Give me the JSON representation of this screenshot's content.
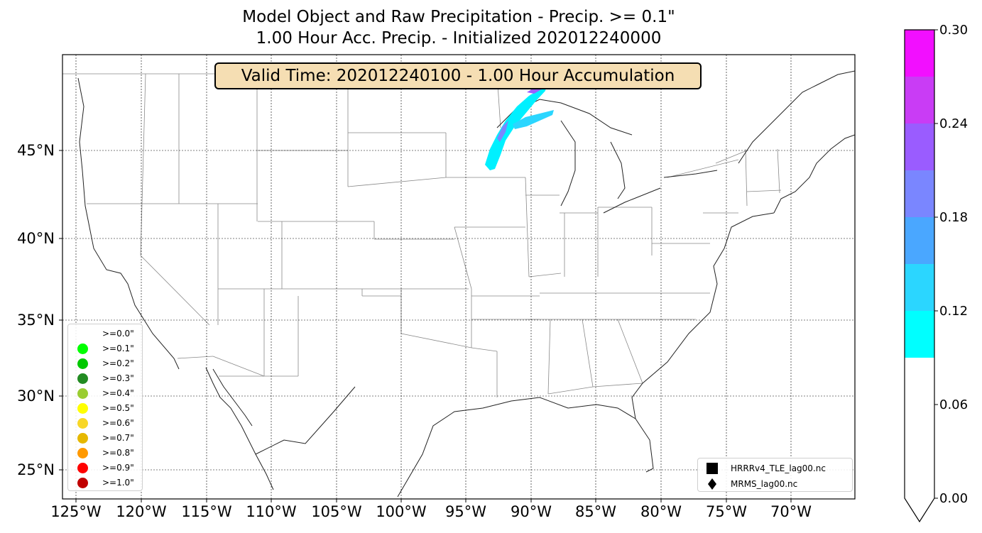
{
  "title": {
    "line1": "Model Object and Raw Precipitation - Precip. >= 0.1\"",
    "line2": "1.00 Hour Acc. Precip. - Initialized 202012240000"
  },
  "valid_time": "Valid Time: 202012240100 - 1.00 Hour Accumulation",
  "map": {
    "lat_labels": [
      "45°N",
      "40°N",
      "35°N",
      "30°N",
      "25°N"
    ],
    "lon_labels": [
      "125°W",
      "120°W",
      "115°W",
      "110°W",
      "105°W",
      "100°W",
      "95°W",
      "90°W",
      "85°W",
      "80°W",
      "75°W",
      "70°W"
    ],
    "land_edge_color": "#222222",
    "border_color": "#888888",
    "grid_color": "#000000"
  },
  "threshold_legend": {
    "items": [
      {
        "label": ">=0.0\"",
        "color": "#ffffff"
      },
      {
        "label": ">=0.1\"",
        "color": "#00ff00"
      },
      {
        "label": ">=0.2\"",
        "color": "#00c800"
      },
      {
        "label": ">=0.3\"",
        "color": "#228b22"
      },
      {
        "label": ">=0.4\"",
        "color": "#9acd32"
      },
      {
        "label": ">=0.5\"",
        "color": "#ffff00"
      },
      {
        "label": ">=0.6\"",
        "color": "#f8d727"
      },
      {
        "label": ">=0.7\"",
        "color": "#e6b800"
      },
      {
        "label": ">=0.8\"",
        "color": "#ff9900"
      },
      {
        "label": ">=0.9\"",
        "color": "#ff0000"
      },
      {
        "label": ">=1.0\"",
        "color": "#c00000"
      }
    ]
  },
  "source_legend": {
    "items": [
      {
        "label": "HRRRv4_TLE_lag00.nc",
        "marker": "square-icon"
      },
      {
        "label": "MRMS_lag00.nc",
        "marker": "diamond-icon"
      }
    ]
  },
  "colorbar": {
    "tick_labels": [
      "0.30",
      "0.24",
      "0.18",
      "0.12",
      "0.06",
      "0.00"
    ],
    "bands": [
      {
        "from": 0.09,
        "to": 0.12,
        "color": "#00ffff"
      },
      {
        "from": 0.12,
        "to": 0.15,
        "color": "#2bd6ff"
      },
      {
        "from": 0.15,
        "to": 0.18,
        "color": "#4aa7ff"
      },
      {
        "from": 0.18,
        "to": 0.21,
        "color": "#7a86ff"
      },
      {
        "from": 0.21,
        "to": 0.24,
        "color": "#9a5cff"
      },
      {
        "from": 0.24,
        "to": 0.27,
        "color": "#c93cf5"
      },
      {
        "from": 0.27,
        "to": 0.3,
        "color": "#f20fff"
      }
    ]
  }
}
